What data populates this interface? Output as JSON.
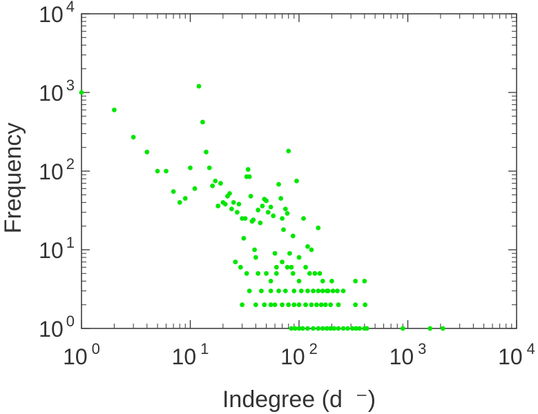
{
  "chart_data": {
    "type": "scatter",
    "title": "",
    "xlabel": "Indegree (d  ⁻)",
    "ylabel": "Frequency",
    "xscale": "log",
    "yscale": "log",
    "xlim": [
      1,
      10000
    ],
    "ylim": [
      1,
      10000
    ],
    "grid": false,
    "legend": "none",
    "x_ticks": [
      {
        "base": "10",
        "exp": "0",
        "value": 1
      },
      {
        "base": "10",
        "exp": "1",
        "value": 10
      },
      {
        "base": "10",
        "exp": "2",
        "value": 100
      },
      {
        "base": "10",
        "exp": "3",
        "value": 1000
      },
      {
        "base": "10",
        "exp": "4",
        "value": 10000
      }
    ],
    "y_ticks": [
      {
        "base": "10",
        "exp": "0",
        "value": 1
      },
      {
        "base": "10",
        "exp": "1",
        "value": 10
      },
      {
        "base": "10",
        "exp": "2",
        "value": 100
      },
      {
        "base": "10",
        "exp": "3",
        "value": 1000
      },
      {
        "base": "10",
        "exp": "4",
        "value": 10000
      }
    ],
    "marker_color": "#00e600",
    "points": [
      [
        1,
        1000
      ],
      [
        2,
        600
      ],
      [
        3,
        270
      ],
      [
        4,
        175
      ],
      [
        5,
        100
      ],
      [
        6,
        100
      ],
      [
        7,
        55
      ],
      [
        8,
        40
      ],
      [
        9,
        45
      ],
      [
        10,
        110
      ],
      [
        11,
        60
      ],
      [
        12,
        1200
      ],
      [
        13,
        420
      ],
      [
        14,
        175
      ],
      [
        15,
        110
      ],
      [
        16,
        65
      ],
      [
        17,
        75
      ],
      [
        18,
        36
      ],
      [
        19,
        70
      ],
      [
        20,
        40
      ],
      [
        21,
        38
      ],
      [
        22,
        48
      ],
      [
        23,
        52
      ],
      [
        24,
        33
      ],
      [
        25,
        40
      ],
      [
        26,
        7
      ],
      [
        27,
        30
      ],
      [
        28,
        38
      ],
      [
        29,
        6
      ],
      [
        30,
        25
      ],
      [
        31,
        14
      ],
      [
        32,
        25
      ],
      [
        33,
        85
      ],
      [
        34,
        105
      ],
      [
        35,
        85
      ],
      [
        36,
        48
      ],
      [
        37,
        23
      ],
      [
        38,
        24
      ],
      [
        39,
        10
      ],
      [
        40,
        8
      ],
      [
        42,
        32
      ],
      [
        44,
        22
      ],
      [
        46,
        36
      ],
      [
        48,
        44
      ],
      [
        50,
        42
      ],
      [
        52,
        30
      ],
      [
        55,
        35
      ],
      [
        58,
        27
      ],
      [
        60,
        9
      ],
      [
        62,
        6
      ],
      [
        65,
        68
      ],
      [
        68,
        45
      ],
      [
        70,
        25
      ],
      [
        72,
        18
      ],
      [
        75,
        33
      ],
      [
        78,
        29
      ],
      [
        80,
        180
      ],
      [
        82,
        9
      ],
      [
        85,
        6
      ],
      [
        88,
        15
      ],
      [
        95,
        75
      ],
      [
        100,
        8
      ],
      [
        110,
        25
      ],
      [
        120,
        11
      ],
      [
        130,
        10
      ],
      [
        150,
        19
      ],
      [
        33,
        5
      ],
      [
        42,
        5
      ],
      [
        50,
        5
      ],
      [
        55,
        4
      ],
      [
        62,
        5
      ],
      [
        70,
        7
      ],
      [
        78,
        6
      ],
      [
        88,
        5
      ],
      [
        100,
        4
      ],
      [
        115,
        6
      ],
      [
        125,
        5
      ],
      [
        140,
        5
      ],
      [
        155,
        5
      ],
      [
        165,
        4
      ],
      [
        180,
        3
      ],
      [
        200,
        4
      ],
      [
        35,
        3
      ],
      [
        45,
        3
      ],
      [
        55,
        3
      ],
      [
        65,
        3
      ],
      [
        75,
        3
      ],
      [
        90,
        3
      ],
      [
        105,
        3
      ],
      [
        120,
        3
      ],
      [
        135,
        3
      ],
      [
        150,
        3
      ],
      [
        165,
        3
      ],
      [
        185,
        3
      ],
      [
        205,
        3
      ],
      [
        225,
        3
      ],
      [
        255,
        3
      ],
      [
        330,
        4
      ],
      [
        400,
        4
      ],
      [
        30,
        2
      ],
      [
        40,
        2
      ],
      [
        48,
        2
      ],
      [
        55,
        2
      ],
      [
        60,
        2
      ],
      [
        70,
        2
      ],
      [
        80,
        2
      ],
      [
        90,
        2
      ],
      [
        100,
        2
      ],
      [
        115,
        2
      ],
      [
        130,
        2
      ],
      [
        145,
        2
      ],
      [
        160,
        2
      ],
      [
        175,
        2
      ],
      [
        195,
        2
      ],
      [
        230,
        2
      ],
      [
        330,
        2
      ],
      [
        405,
        2
      ],
      [
        85,
        1
      ],
      [
        92,
        1
      ],
      [
        100,
        1
      ],
      [
        108,
        1
      ],
      [
        120,
        1
      ],
      [
        135,
        1
      ],
      [
        150,
        1
      ],
      [
        165,
        1
      ],
      [
        180,
        1
      ],
      [
        195,
        1
      ],
      [
        210,
        1
      ],
      [
        230,
        1
      ],
      [
        255,
        1
      ],
      [
        280,
        1
      ],
      [
        310,
        1
      ],
      [
        335,
        1
      ],
      [
        360,
        1
      ],
      [
        400,
        1
      ],
      [
        420,
        1
      ],
      [
        900,
        1
      ],
      [
        1600,
        1
      ],
      [
        2100,
        1
      ]
    ]
  }
}
